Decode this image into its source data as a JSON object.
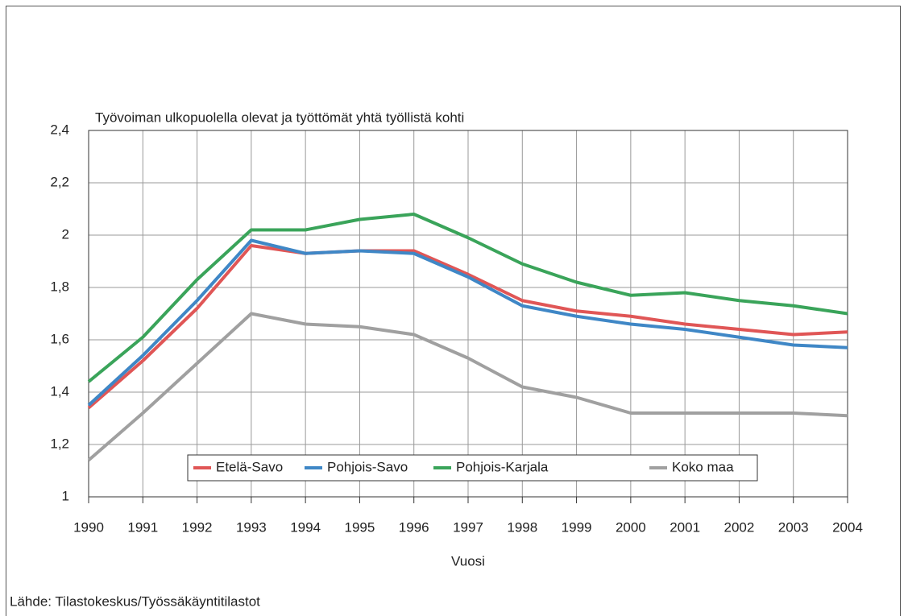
{
  "chart_data": {
    "type": "line",
    "title": "Työvoiman ulkopuolella olevat ja työttömät yhtä työllistä kohti",
    "x_label": "Vuosi",
    "source": "Lähde: Tilastokeskus/Työssäkäyntitilastot",
    "x": [
      1990,
      1991,
      1992,
      1993,
      1994,
      1995,
      1996,
      1997,
      1998,
      1999,
      2000,
      2001,
      2002,
      2003,
      2004
    ],
    "xlim": [
      1990,
      2004
    ],
    "xticks": [
      1990,
      1991,
      1992,
      1993,
      1994,
      1995,
      1996,
      1997,
      1998,
      1999,
      2000,
      2001,
      2002,
      2003,
      2004
    ],
    "ylim": [
      1,
      2.4
    ],
    "yticks": [
      1,
      {
        "value": 1.2,
        "label": "1,2"
      },
      {
        "value": 1.4,
        "label": "1,4"
      },
      {
        "value": 1.6,
        "label": "1,6"
      },
      {
        "value": 1.8,
        "label": "1,8"
      },
      2,
      {
        "value": 2.2,
        "label": "2,2"
      },
      {
        "value": 2.4,
        "label": "2,4"
      }
    ],
    "grid": true,
    "legend": "lower center",
    "series": [
      {
        "name": "Etelä-Savo",
        "color": "#e05656",
        "values": [
          1.34,
          1.52,
          1.72,
          1.96,
          1.93,
          1.94,
          1.94,
          1.85,
          1.75,
          1.71,
          1.69,
          1.66,
          1.64,
          1.62,
          1.63
        ]
      },
      {
        "name": "Pohjois-Savo",
        "color": "#3f87c6",
        "values": [
          1.35,
          1.54,
          1.75,
          1.98,
          1.93,
          1.94,
          1.93,
          1.84,
          1.73,
          1.69,
          1.66,
          1.64,
          1.61,
          1.58,
          1.57
        ]
      },
      {
        "name": "Pohjois-Karjala",
        "color": "#3aa45a",
        "values": [
          1.44,
          1.61,
          1.83,
          2.02,
          2.02,
          2.06,
          2.08,
          1.99,
          1.89,
          1.82,
          1.77,
          1.78,
          1.75,
          1.73,
          1.7
        ]
      },
      {
        "name": "Koko maa",
        "color": "#a0a0a0",
        "values": [
          1.14,
          1.32,
          1.51,
          1.7,
          1.66,
          1.65,
          1.62,
          1.53,
          1.42,
          1.38,
          1.32,
          1.32,
          1.32,
          1.32,
          1.31
        ]
      }
    ]
  }
}
